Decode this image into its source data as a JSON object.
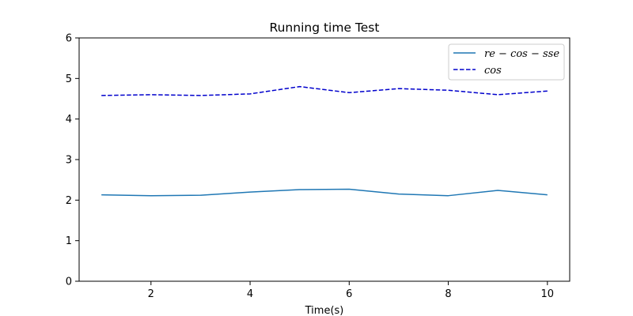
{
  "chart_data": {
    "type": "line",
    "title": "Running time Test",
    "xlabel": "Time(s)",
    "ylabel": "",
    "x": [
      1,
      2,
      3,
      4,
      5,
      6,
      7,
      8,
      9,
      10
    ],
    "xlim": [
      0.55,
      10.45
    ],
    "ylim": [
      0,
      6
    ],
    "xticks": [
      2,
      4,
      6,
      8,
      10
    ],
    "yticks": [
      0,
      1,
      2,
      3,
      4,
      5,
      6
    ],
    "grid": false,
    "legend_position": "upper right",
    "series": [
      {
        "name": "re − cos − sse",
        "style": "solid",
        "color": "#1f77b4",
        "values": [
          2.13,
          2.11,
          2.12,
          2.2,
          2.26,
          2.27,
          2.15,
          2.11,
          2.24,
          2.13
        ]
      },
      {
        "name": "cos",
        "style": "dashed",
        "color": "#0000cc",
        "values": [
          4.58,
          4.6,
          4.58,
          4.62,
          4.8,
          4.65,
          4.75,
          4.71,
          4.6,
          4.69
        ]
      }
    ]
  }
}
